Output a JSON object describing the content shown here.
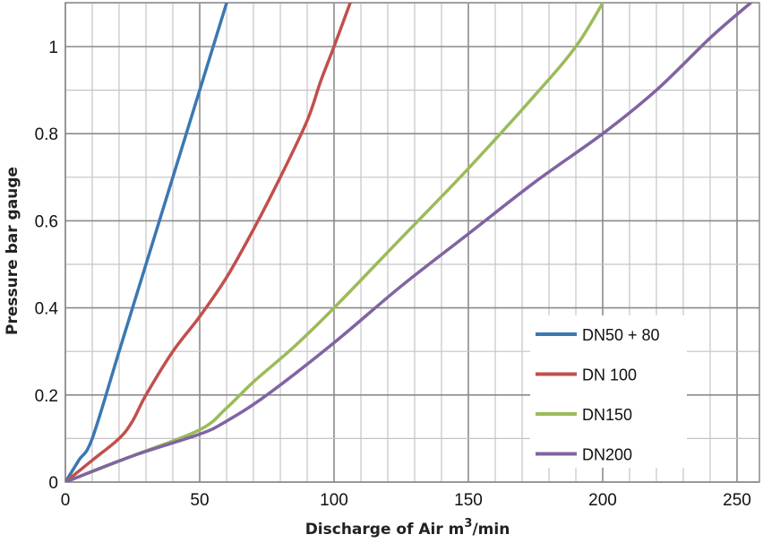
{
  "chart_data": {
    "type": "line",
    "title": "",
    "xlabel": "Discharge of Air m",
    "xlabel_superscript": "3",
    "xlabel_suffix": "/min",
    "ylabel": "Pressure bar gauge",
    "xlim": [
      0,
      258
    ],
    "ylim": [
      0,
      1.1
    ],
    "x_ticks": [
      0,
      50,
      100,
      150,
      200,
      250
    ],
    "y_ticks": [
      0,
      0.2,
      0.4,
      0.6,
      0.8,
      1
    ],
    "y_tick_labels": [
      "0",
      "0.2",
      "0.4",
      "0.6",
      "0.8",
      "1"
    ],
    "grid": true,
    "grid_minor_x": 10,
    "grid_minor_y": 0.1,
    "legend_placement": "center-right",
    "series": [
      {
        "name": "DN50 + 80",
        "color": "#3b78b2",
        "x": [
          0,
          5,
          10,
          20,
          30,
          40,
          50,
          60
        ],
        "y": [
          0,
          0.05,
          0.1,
          0.3,
          0.5,
          0.7,
          0.9,
          1.1
        ]
      },
      {
        "name": "DN 100",
        "color": "#c0504d",
        "x": [
          0,
          10,
          20,
          25,
          30,
          40,
          50,
          60,
          70,
          80,
          90,
          95,
          100,
          106
        ],
        "y": [
          0,
          0.05,
          0.1,
          0.14,
          0.2,
          0.3,
          0.38,
          0.47,
          0.58,
          0.7,
          0.83,
          0.92,
          1.0,
          1.1
        ]
      },
      {
        "name": "DN150",
        "color": "#9bbb59",
        "x": [
          0,
          25,
          50,
          60,
          70,
          85,
          100,
          125,
          150,
          175,
          190,
          200
        ],
        "y": [
          0,
          0.06,
          0.12,
          0.17,
          0.23,
          0.31,
          0.4,
          0.56,
          0.72,
          0.89,
          1.0,
          1.1
        ]
      },
      {
        "name": "DN200",
        "color": "#8064a2",
        "x": [
          0,
          25,
          50,
          60,
          75,
          100,
          125,
          150,
          175,
          200,
          220,
          240,
          255
        ],
        "y": [
          0,
          0.06,
          0.11,
          0.14,
          0.2,
          0.32,
          0.45,
          0.57,
          0.69,
          0.8,
          0.9,
          1.02,
          1.1
        ]
      }
    ]
  }
}
